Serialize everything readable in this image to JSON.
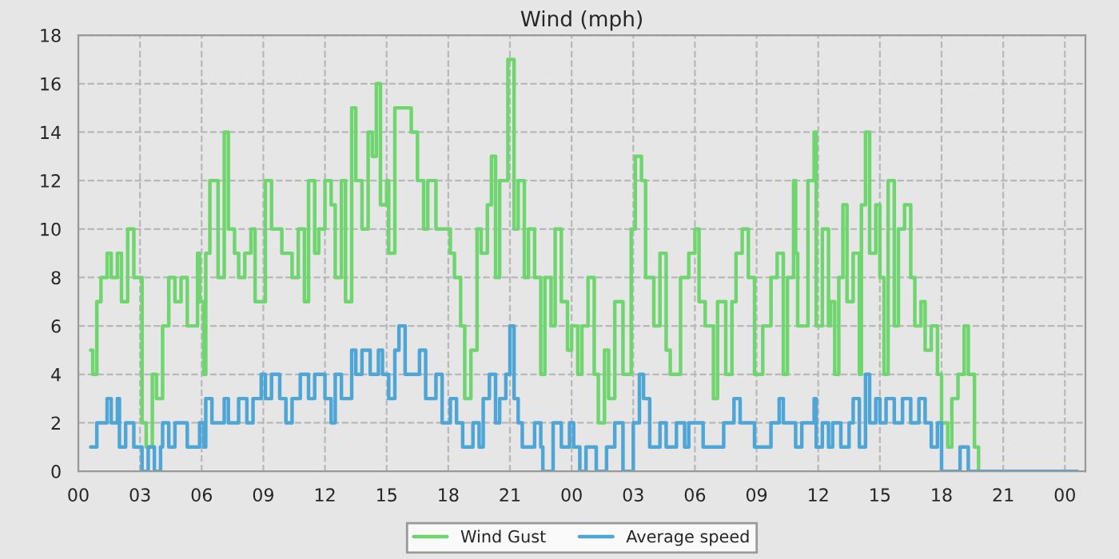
{
  "chart_data": {
    "type": "step",
    "title": "Wind (mph)",
    "xlim": [
      0,
      49
    ],
    "ylim": [
      0,
      18
    ],
    "xticks": [
      {
        "value": 0,
        "label": "00"
      },
      {
        "value": 3,
        "label": "03"
      },
      {
        "value": 6,
        "label": "06"
      },
      {
        "value": 9,
        "label": "09"
      },
      {
        "value": 12,
        "label": "12"
      },
      {
        "value": 15,
        "label": "15"
      },
      {
        "value": 18,
        "label": "18"
      },
      {
        "value": 21,
        "label": "21"
      },
      {
        "value": 24,
        "label": "00"
      },
      {
        "value": 27,
        "label": "03"
      },
      {
        "value": 30,
        "label": "06"
      },
      {
        "value": 33,
        "label": "09"
      },
      {
        "value": 36,
        "label": "12"
      },
      {
        "value": 39,
        "label": "15"
      },
      {
        "value": 42,
        "label": "18"
      },
      {
        "value": 45,
        "label": "21"
      },
      {
        "value": 48,
        "label": "00"
      }
    ],
    "yticks": [
      0,
      2,
      4,
      6,
      8,
      10,
      12,
      14,
      16,
      18
    ],
    "grid": true,
    "legend": "bottom",
    "line_style": "solid",
    "marker": "none",
    "series": [
      {
        "name": "Wind Gust",
        "color": "#6fd66f",
        "x": [
          0.6,
          0.7,
          0.9,
          1.1,
          1.4,
          1.6,
          1.9,
          2.1,
          2.4,
          2.7,
          2.9,
          3.1,
          3.3,
          3.6,
          3.8,
          4.1,
          4.4,
          4.7,
          5.0,
          5.3,
          5.5,
          5.8,
          5.9,
          6.1,
          6.2,
          6.4,
          6.8,
          7.1,
          7.3,
          7.6,
          7.8,
          8.1,
          8.4,
          8.6,
          9.1,
          9.4,
          9.9,
          10.4,
          10.7,
          11.0,
          11.2,
          11.5,
          11.7,
          12.0,
          12.3,
          12.5,
          12.8,
          13.0,
          13.3,
          13.5,
          13.8,
          14.1,
          14.3,
          14.5,
          14.7,
          15.0,
          15.1,
          15.4,
          16.0,
          16.2,
          16.5,
          16.8,
          17.0,
          17.4,
          17.8,
          18.1,
          18.3,
          18.6,
          18.8,
          19.1,
          19.4,
          19.6,
          19.9,
          20.1,
          20.3,
          20.5,
          20.9,
          21.2,
          21.4,
          21.7,
          21.9,
          22.2,
          22.5,
          22.7,
          23.0,
          23.2,
          23.5,
          23.8,
          24.0,
          24.3,
          24.5,
          24.8,
          25.1,
          25.3,
          25.6,
          25.8,
          26.1,
          26.5,
          26.9,
          27.1,
          27.4,
          27.6,
          28.0,
          28.3,
          28.6,
          28.8,
          29.3,
          29.7,
          30.0,
          30.2,
          30.5,
          30.9,
          31.1,
          31.5,
          31.8,
          32.0,
          32.3,
          32.6,
          32.9,
          33.3,
          33.7,
          34.0,
          34.3,
          34.5,
          34.8,
          34.9,
          35.0,
          35.5,
          35.8,
          35.9,
          36.2,
          36.5,
          36.6,
          36.8,
          37.0,
          37.2,
          37.4,
          37.7,
          38.0,
          38.1,
          38.3,
          38.5,
          38.8,
          39.0,
          39.2,
          39.4,
          39.7,
          39.9,
          40.2,
          40.5,
          40.7,
          41.0,
          41.2,
          41.5,
          41.8,
          42.0,
          42.3,
          42.5,
          42.8,
          43.1,
          43.3,
          43.6,
          43.8,
          48.6
        ],
        "values": [
          5,
          4,
          7,
          8,
          9,
          8,
          9,
          7,
          10,
          8,
          8,
          2,
          1,
          4,
          3,
          6,
          8,
          7,
          8,
          6,
          6,
          9,
          7,
          4,
          9,
          12,
          8,
          14,
          10,
          9,
          8,
          9,
          10,
          7,
          12,
          10,
          9,
          8,
          10,
          7,
          12,
          9,
          10,
          12,
          11,
          8,
          12,
          7,
          15,
          12,
          10,
          14,
          13,
          16,
          11,
          12,
          9,
          15,
          15,
          14,
          12,
          10,
          12,
          10,
          10,
          9,
          8,
          6,
          3,
          5,
          10,
          9,
          11,
          13,
          8,
          12,
          17,
          10,
          12,
          8,
          10,
          8,
          4,
          8,
          6,
          10,
          7,
          5,
          6,
          4,
          6,
          8,
          4,
          2,
          5,
          3,
          7,
          4,
          10,
          13,
          12,
          8,
          6,
          9,
          5,
          4,
          8,
          9,
          10,
          7,
          6,
          3,
          7,
          4,
          7,
          9,
          10,
          8,
          4,
          6,
          8,
          9,
          4,
          8,
          12,
          9,
          6,
          12,
          14,
          6,
          10,
          6,
          7,
          4,
          8,
          11,
          7,
          9,
          4,
          11,
          14,
          9,
          11,
          8,
          4,
          12,
          6,
          10,
          11,
          8,
          6,
          7,
          5,
          6,
          4,
          2,
          1,
          3,
          4,
          6,
          4,
          1,
          0,
          0
        ]
      },
      {
        "name": "Average speed",
        "color": "#4da6d6",
        "x": [
          0.6,
          0.9,
          1.4,
          1.6,
          1.9,
          2.0,
          2.3,
          2.7,
          3.1,
          3.4,
          3.7,
          4.0,
          4.1,
          4.4,
          4.7,
          5.3,
          5.9,
          6.1,
          6.2,
          6.5,
          7.1,
          7.3,
          7.8,
          8.2,
          8.5,
          8.9,
          9.1,
          9.4,
          9.8,
          10.1,
          10.4,
          10.8,
          11.2,
          11.5,
          12.0,
          12.3,
          12.5,
          12.8,
          13.3,
          13.5,
          13.8,
          14.2,
          14.6,
          14.8,
          15.1,
          15.4,
          15.6,
          15.9,
          16.4,
          16.6,
          16.9,
          17.4,
          17.7,
          18.1,
          18.4,
          18.7,
          19.2,
          19.5,
          19.7,
          20.0,
          20.3,
          20.5,
          20.8,
          21.0,
          21.2,
          21.4,
          21.6,
          22.2,
          22.5,
          22.6,
          23.1,
          23.5,
          23.9,
          24.1,
          24.4,
          24.7,
          25.2,
          25.7,
          26.1,
          26.5,
          27.0,
          27.3,
          27.5,
          27.8,
          28.3,
          28.6,
          29.1,
          29.5,
          29.7,
          30.4,
          30.9,
          31.4,
          31.9,
          32.2,
          32.9,
          33.7,
          34.1,
          34.3,
          34.9,
          35.2,
          35.8,
          35.9,
          36.2,
          36.5,
          36.7,
          37.1,
          37.5,
          37.7,
          38.0,
          38.3,
          38.5,
          38.8,
          39.0,
          39.3,
          39.7,
          40.1,
          40.5,
          40.9,
          41.2,
          41.5,
          41.8,
          42.0,
          42.9,
          43.3,
          48.6
        ],
        "values": [
          1,
          2,
          3,
          2,
          3,
          1,
          2,
          1,
          0,
          1,
          0,
          1,
          2,
          1,
          2,
          1,
          2,
          1,
          3,
          2,
          3,
          2,
          3,
          2,
          3,
          4,
          3,
          4,
          3,
          2,
          3,
          4,
          3,
          4,
          3,
          2,
          4,
          3,
          5,
          4,
          5,
          4,
          5,
          4,
          3,
          5,
          6,
          4,
          4,
          5,
          3,
          4,
          2,
          3,
          2,
          1,
          2,
          1,
          3,
          4,
          2,
          3,
          4,
          6,
          3,
          2,
          1,
          2,
          1,
          0,
          2,
          1,
          2,
          1,
          0,
          1,
          0,
          1,
          2,
          0,
          2,
          4,
          3,
          1,
          2,
          1,
          2,
          1,
          2,
          1,
          1,
          2,
          3,
          2,
          1,
          2,
          3,
          2,
          1,
          2,
          3,
          1,
          2,
          1,
          2,
          1,
          2,
          3,
          1,
          4,
          2,
          3,
          2,
          3,
          2,
          3,
          2,
          3,
          2,
          1,
          2,
          0,
          1,
          0,
          0
        ]
      }
    ]
  }
}
